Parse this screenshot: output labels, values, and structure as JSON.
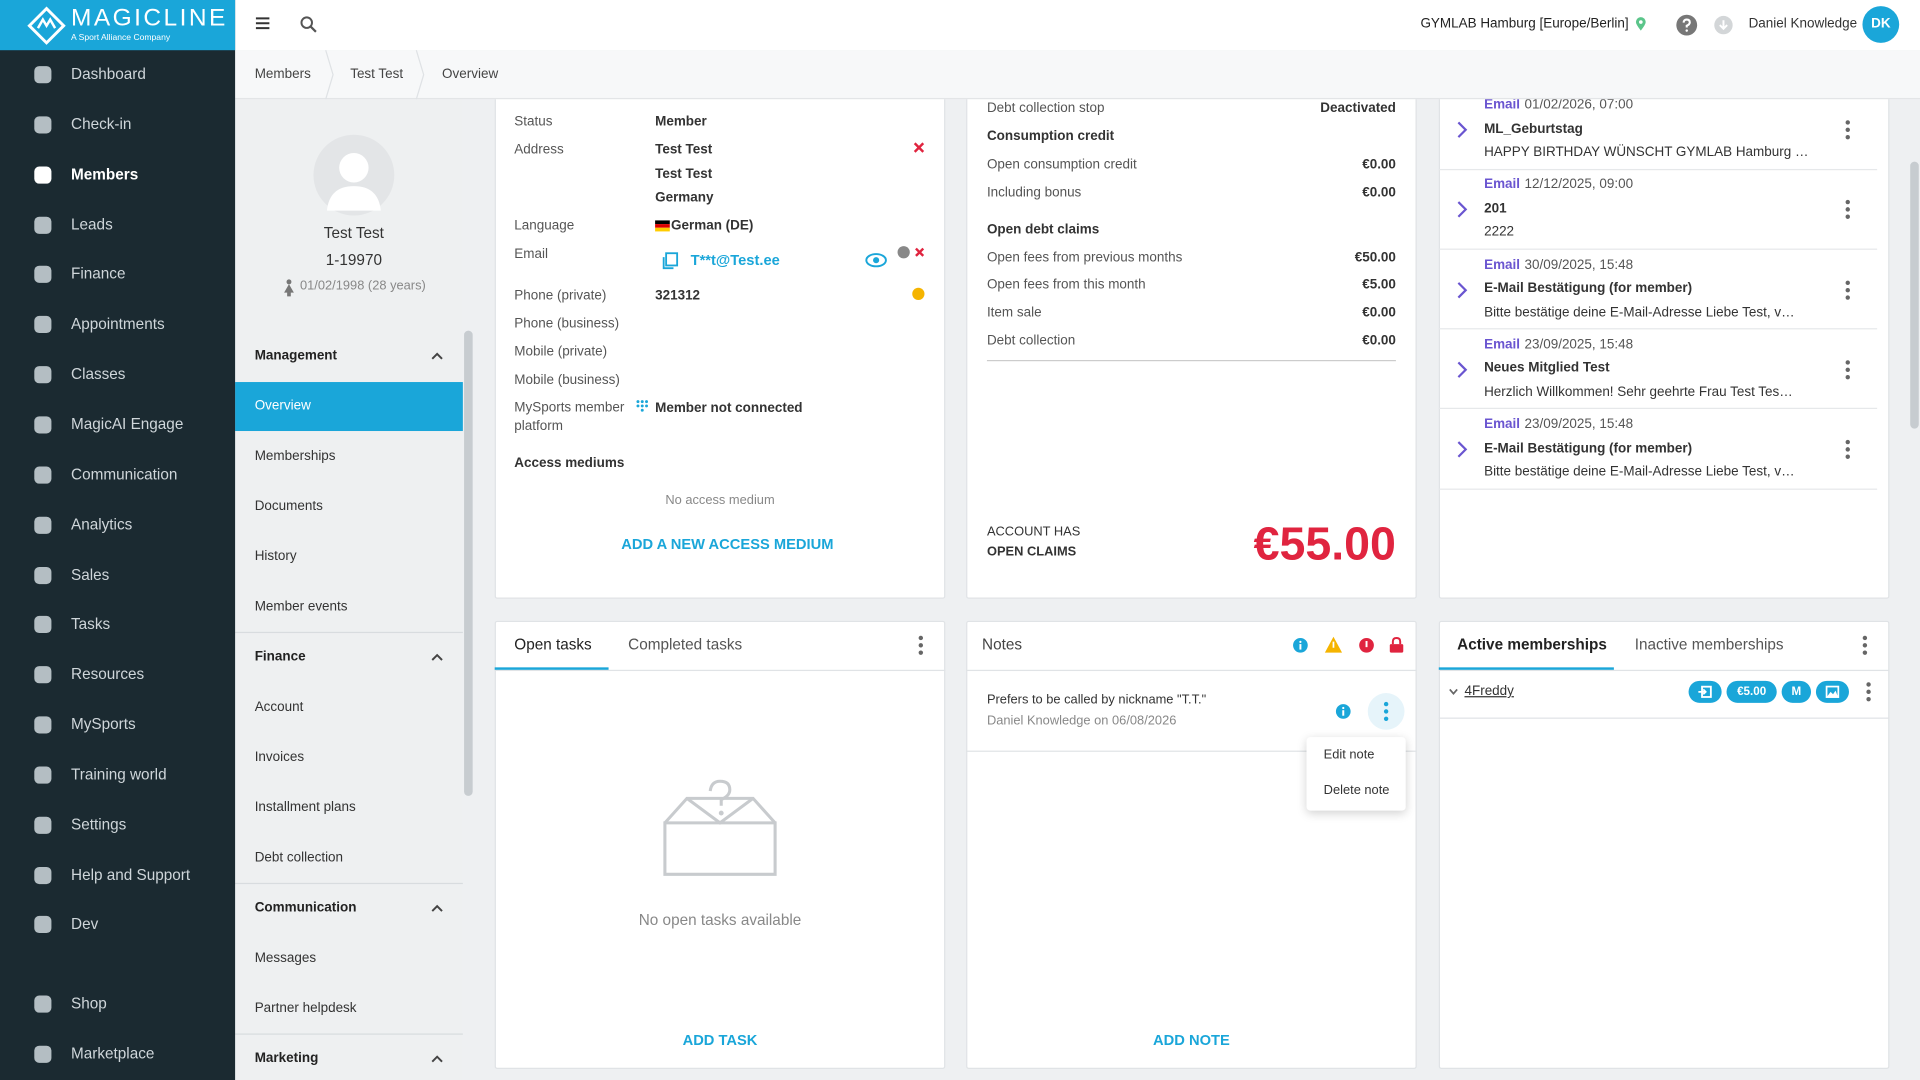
{
  "sidebar": {
    "brand": "MAGICLINE",
    "tagline": "A Sport Alliance Company",
    "items": [
      "Dashboard",
      "Check-in",
      "Members",
      "Leads",
      "Finance",
      "Appointments",
      "Classes",
      "MagicAI Engage",
      "Communication",
      "Analytics",
      "Sales",
      "Tasks",
      "Resources",
      "MySports",
      "Training world",
      "Settings",
      "Help and Support",
      "Dev"
    ],
    "bottom_items": [
      "Shop",
      "Marketplace"
    ]
  },
  "topbar": {
    "location": "GYMLAB Hamburg [Europe/Berlin]",
    "user": "Daniel Knowledge",
    "initials": "DK"
  },
  "breadcrumb": [
    "Members",
    "Test Test",
    "Overview"
  ],
  "profile": {
    "name": "Test Test",
    "member_id": "1-19970",
    "birth_date": "01/02/1998 (28 years)"
  },
  "subnav": [
    {
      "title": "Management",
      "items": [
        "Overview",
        "Memberships",
        "Documents",
        "History",
        "Member events"
      ]
    },
    {
      "title": "Finance",
      "items": [
        "Account",
        "Invoices",
        "Installment plans",
        "Debt collection"
      ]
    },
    {
      "title": "Communication",
      "items": [
        "Messages",
        "Partner helpdesk"
      ]
    },
    {
      "title": "Marketing",
      "items": []
    }
  ],
  "personal": {
    "rows": [
      {
        "label": "Status",
        "value": [
          "Member"
        ]
      },
      {
        "label": "Address",
        "value": [
          "Test Test",
          "Test Test",
          "Germany"
        ]
      },
      {
        "label": "Language",
        "value": [
          "German (DE)"
        ]
      },
      {
        "label": "Email",
        "value": [
          "T**t@Test.ee"
        ]
      },
      {
        "label": "Phone (private)",
        "value": [
          "321312"
        ]
      },
      {
        "label": "Phone (business)",
        "value": []
      },
      {
        "label": "Mobile (private)",
        "value": []
      },
      {
        "label": "Mobile (business)",
        "value": []
      },
      {
        "label": "MySports member platform",
        "value": [
          "Member not connected"
        ]
      }
    ],
    "access_title": "Access mediums",
    "access_empty": "No access medium",
    "access_action": "ADD A NEW ACCESS MEDIUM"
  },
  "account": {
    "debt_collection_stop": {
      "label": "Debt collection stop",
      "value": "Deactivated"
    },
    "sections": [
      {
        "title": "Consumption credit",
        "rows": [
          {
            "label": "Open consumption credit",
            "value": "€0.00"
          },
          {
            "label": "Including bonus",
            "value": "€0.00"
          }
        ]
      },
      {
        "title": "Open debt claims",
        "rows": [
          {
            "label": "Open fees from previous months",
            "value": "€50.00"
          },
          {
            "label": "Open fees from this month",
            "value": "€5.00"
          },
          {
            "label": "Item sale",
            "value": "€0.00"
          },
          {
            "label": "Debt collection",
            "value": "€0.00"
          }
        ]
      }
    ],
    "summary_label": [
      "ACCOUNT HAS",
      "OPEN CLAIMS"
    ],
    "balance": "€55.00"
  },
  "communications": [
    {
      "type": "Email",
      "date": "01/02/2026, 07:00",
      "title": "ML_Geburtstag",
      "preview": "HAPPY BIRTHDAY WÜNSCHT GYMLAB Hamburg …"
    },
    {
      "type": "Email",
      "date": "12/12/2025, 09:00",
      "title": "201",
      "preview": "2222"
    },
    {
      "type": "Email",
      "date": "30/09/2025, 15:48",
      "title": "E-Mail Bestätigung (for member)",
      "preview": "Bitte bestätige deine E-Mail-Adresse Liebe Test, v…"
    },
    {
      "type": "Email",
      "date": "23/09/2025, 15:48",
      "title": "Neues Mitglied Test",
      "preview": "Herzlich Willkommen! Sehr geehrte Frau Test Tes…"
    },
    {
      "type": "Email",
      "date": "23/09/2025, 15:48",
      "title": "E-Mail Bestätigung (for member)",
      "preview": "Bitte bestätige deine E-Mail-Adresse Liebe Test, v…"
    }
  ],
  "tasks": {
    "tabs": [
      "Open tasks",
      "Completed tasks"
    ],
    "empty": "No open tasks available",
    "action": "ADD TASK"
  },
  "notes": {
    "title": "Notes",
    "note": {
      "text": "Prefers to be called by nickname \"T.T.\"",
      "author": "Daniel Knowledge on 06/08/2026"
    },
    "menu": [
      "Edit note",
      "Delete note"
    ],
    "action": "ADD NOTE"
  },
  "memberships": {
    "tabs": [
      "Active memberships",
      "Inactive memberships"
    ],
    "items": [
      {
        "name": "4Freddy",
        "badges": [
          "€5.00",
          "M"
        ]
      }
    ]
  }
}
